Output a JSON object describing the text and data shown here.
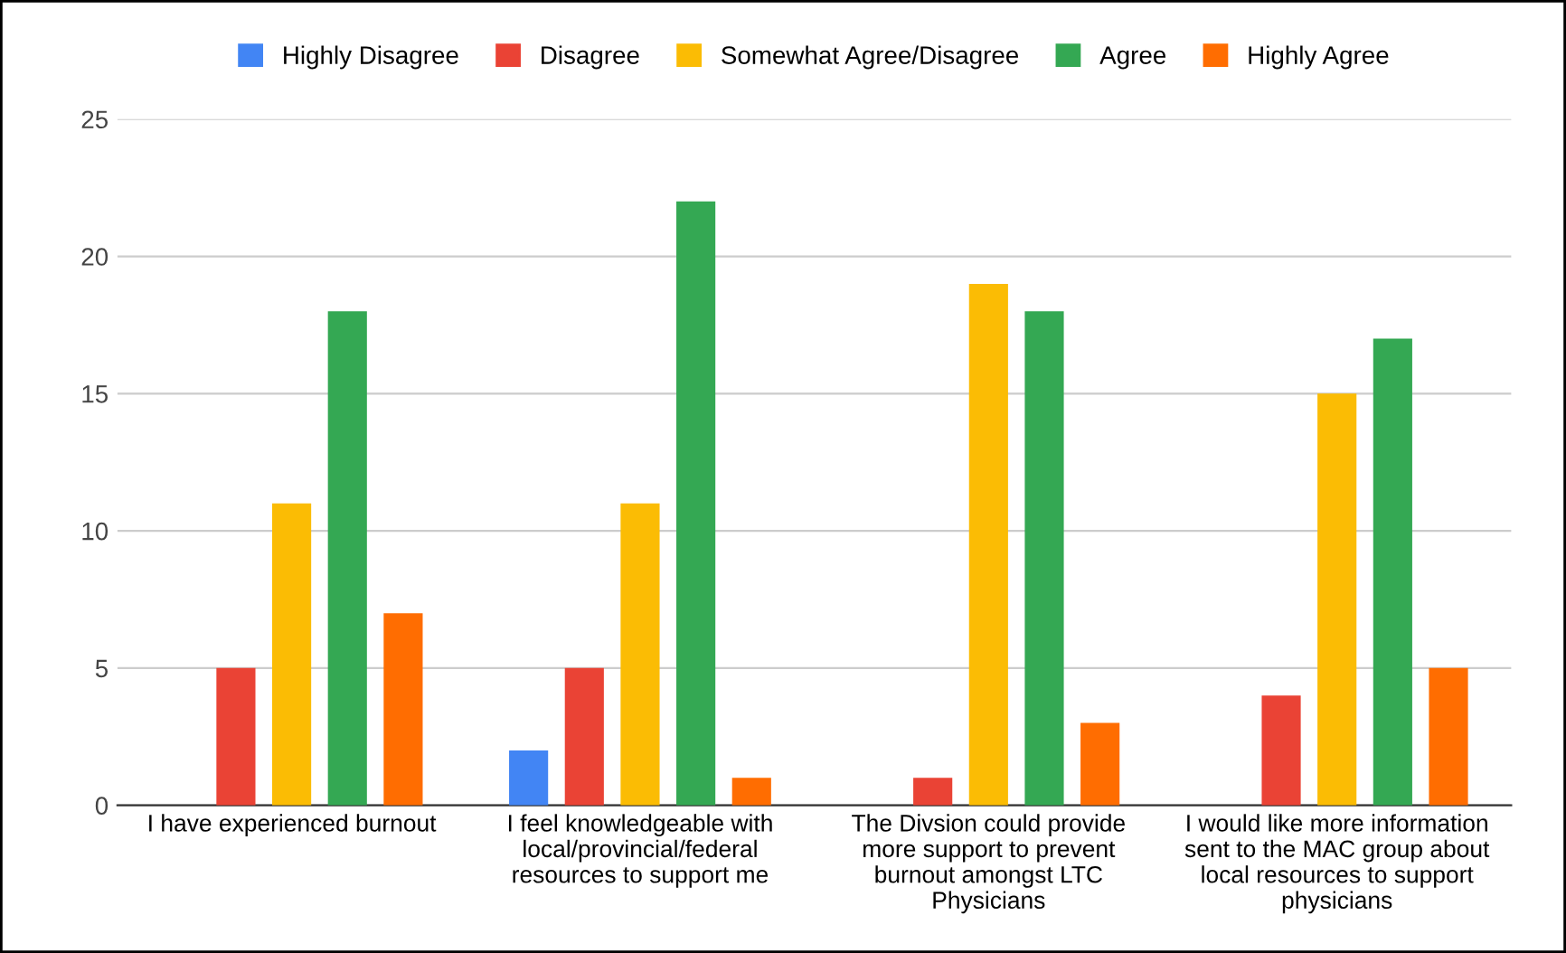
{
  "chart_data": {
    "type": "bar",
    "categories": [
      "I have experienced burnout",
      "I feel knowledgeable with\nlocal/provincial/federal\nresources to support me",
      "The Divsion could provide\nmore support to prevent\nburnout amongst LTC\nPhysicians",
      "I would like more information\nsent to the MAC group about\nlocal resources to support\nphysicians"
    ],
    "series": [
      {
        "name": "Highly Disagree",
        "color": "#4285f4",
        "values": [
          0,
          2,
          0,
          0
        ]
      },
      {
        "name": "Disagree",
        "color": "#ea4335",
        "values": [
          5,
          5,
          1,
          4
        ]
      },
      {
        "name": "Somewhat Agree/Disagree",
        "color": "#fbbc04",
        "values": [
          11,
          11,
          19,
          15
        ]
      },
      {
        "name": "Agree",
        "color": "#34a853",
        "values": [
          18,
          22,
          18,
          17
        ]
      },
      {
        "name": "Highly Agree",
        "color": "#ff6d01",
        "values": [
          7,
          1,
          3,
          5
        ]
      }
    ],
    "ylim": [
      0,
      25
    ],
    "yticks": [
      0,
      5,
      10,
      15,
      20,
      25
    ],
    "grid": "y",
    "legend": "top"
  }
}
